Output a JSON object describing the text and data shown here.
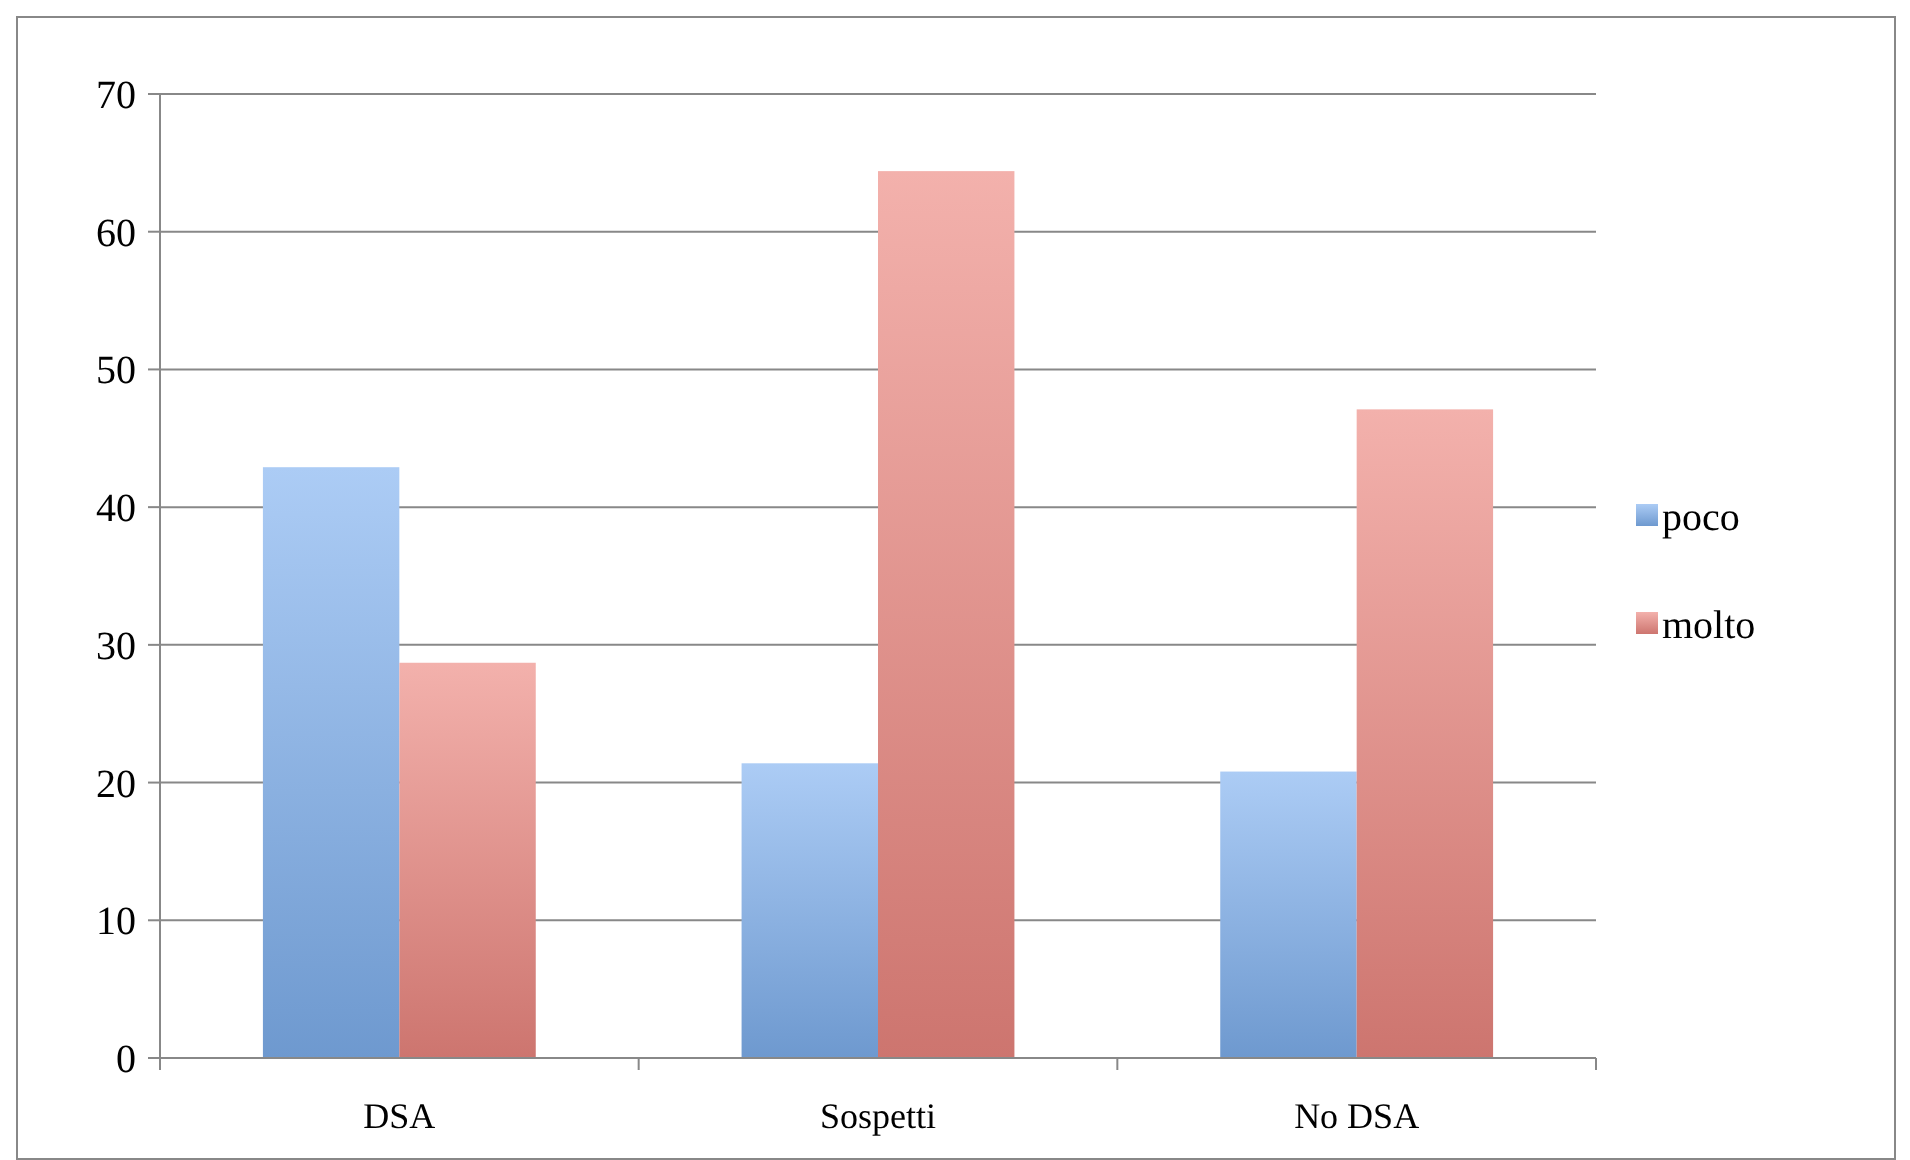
{
  "chart_data": {
    "type": "bar",
    "categories": [
      "DSA",
      "Sospetti",
      "No DSA"
    ],
    "series": [
      {
        "name": "poco",
        "color": "#7fb1ef",
        "values": [
          42.9,
          21.4,
          20.8
        ]
      },
      {
        "name": "molto",
        "color": "#ec8780",
        "values": [
          28.7,
          64.4,
          47.1
        ]
      }
    ],
    "ylim": [
      0,
      70
    ],
    "yticks": [
      0,
      10,
      20,
      30,
      40,
      50,
      60,
      70
    ],
    "grid": "y",
    "legend": "right"
  }
}
